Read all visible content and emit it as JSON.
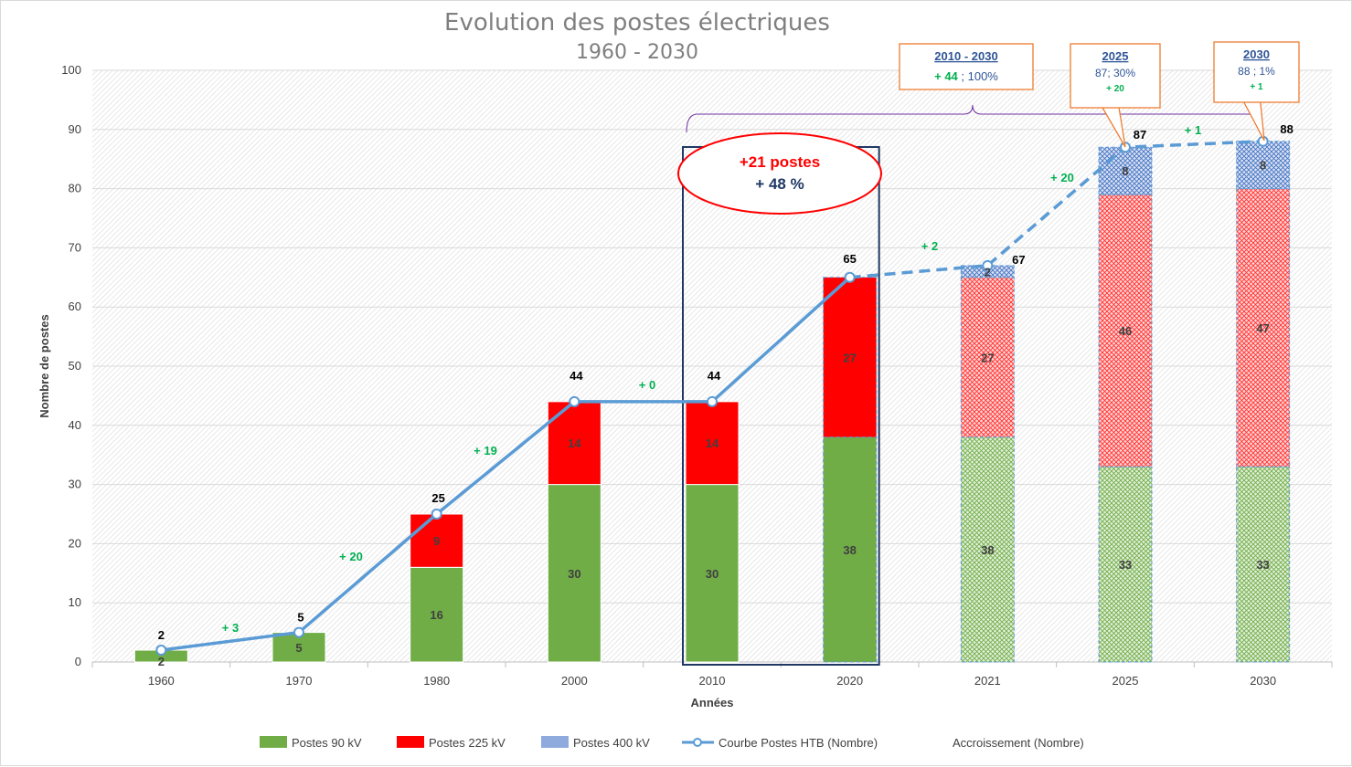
{
  "title_line1": "Evolution des postes électriques",
  "title_line2": "1960 - 2030",
  "colors": {
    "p90": "#70ad47",
    "p225": "#ff0000",
    "p400": "#8faadc",
    "curve": "#5b9bd5",
    "increment": "#00b050",
    "callout_border": "#ed7d31",
    "frame": "#1f3864"
  },
  "chart_data": {
    "type": "bar",
    "stacked": true,
    "xlabel": "Années",
    "ylabel": "Nombre de postes",
    "ylim": [
      0,
      100
    ],
    "yticks": [
      0,
      10,
      20,
      30,
      40,
      50,
      60,
      70,
      80,
      90,
      100
    ],
    "grid": true,
    "legend_position": "bottom",
    "categories": [
      "1960",
      "1970",
      "1980",
      "2000",
      "2010",
      "2020",
      "2021",
      "2025",
      "2030"
    ],
    "projected_from_index": 6,
    "series": [
      {
        "name": "Postes 90 kV",
        "values": [
          2,
          5,
          16,
          30,
          30,
          38,
          38,
          33,
          33
        ]
      },
      {
        "name": "Postes 225 kV",
        "values": [
          0,
          0,
          9,
          14,
          14,
          27,
          27,
          46,
          47
        ]
      },
      {
        "name": "Postes 400 kV",
        "values": [
          0,
          0,
          0,
          0,
          0,
          0,
          2,
          8,
          8
        ]
      }
    ],
    "segment_labels": {
      "p90": [
        "2",
        "5",
        "16",
        "30",
        "30",
        "38",
        "38",
        "33",
        "33"
      ],
      "p225": [
        "",
        "",
        "9",
        "14",
        "14",
        "27",
        "27",
        "46",
        "47"
      ],
      "p400": [
        "",
        "",
        "",
        "",
        "",
        "",
        "2",
        "8",
        "8"
      ]
    },
    "line": {
      "name": "Courbe Postes HTB (Nombre)",
      "values": [
        2,
        5,
        25,
        44,
        44,
        65,
        67,
        87,
        88
      ],
      "labels": [
        "2",
        "5",
        "25",
        "44",
        "44",
        "65",
        "67",
        "87",
        "88"
      ],
      "dashed_from_index": 5
    },
    "increments": {
      "name": "Accroissement (Nombre)",
      "labels": [
        "+ 3",
        "+ 20",
        "+ 19",
        "+ 0",
        "",
        "+ 2",
        "+ 20",
        "+ 1"
      ]
    }
  },
  "highlight": {
    "line1": "+21 postes",
    "line2": "+ 48 %"
  },
  "callouts": [
    {
      "title": "2010 - 2030",
      "value_green": "+ 44",
      "value_rest": " ; 100%",
      "sub": ""
    },
    {
      "title": "2025",
      "value_green": "",
      "value_rest": "87; 30%",
      "sub": "+ 20"
    },
    {
      "title": "2030",
      "value_green": "",
      "value_rest": "88 ; 1%",
      "sub": "+ 1"
    }
  ],
  "legend": {
    "p90": "Postes 90 kV",
    "p225": "Postes 225 kV",
    "p400": "Postes 400 kV",
    "curve": "Courbe Postes HTB (Nombre)",
    "increments": "Accroissement (Nombre)"
  }
}
